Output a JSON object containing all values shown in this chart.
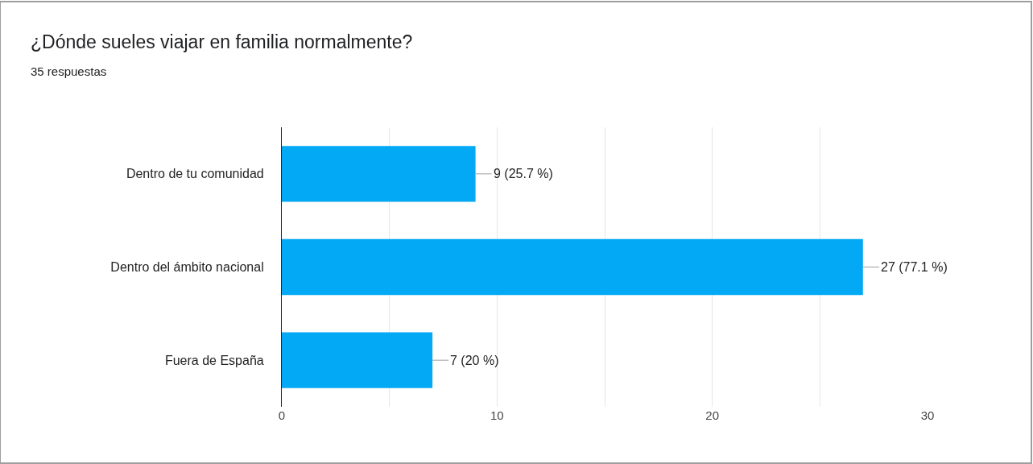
{
  "chart_data": {
    "type": "bar",
    "orientation": "horizontal",
    "title": "¿Dónde sueles viajar en familia normalmente?",
    "subtitle": "35 respuestas",
    "categories": [
      "Dentro de tu comunidad",
      "Dentro del ámbito nacional",
      "Fuera de España"
    ],
    "values": [
      9,
      27,
      7
    ],
    "color": "#03a9f4",
    "value_labels": [
      "9 (25.7 %)",
      "27 (77.1 %)",
      "7 (20 %)"
    ],
    "xlim": [
      0,
      30
    ],
    "xticks": [
      0,
      {
        "value": 5,
        "label": null
      },
      10,
      {
        "value": 15,
        "label": null
      },
      20,
      {
        "value": 25,
        "label": null
      },
      30
    ],
    "grid": "x",
    "legend": false
  }
}
